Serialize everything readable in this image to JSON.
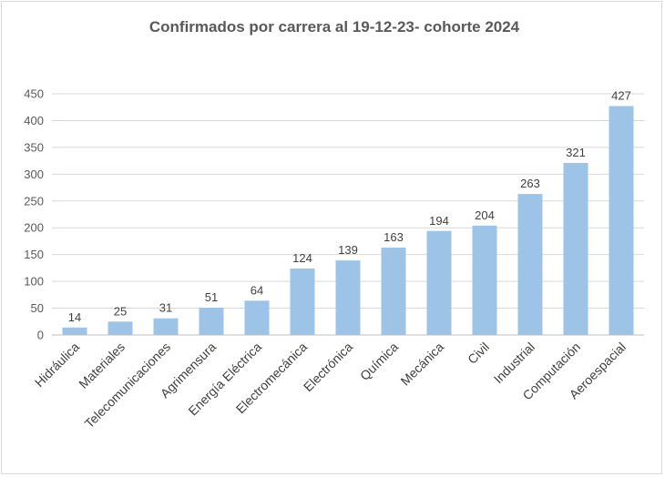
{
  "chart_data": {
    "type": "bar",
    "title": "Confirmados por carrera al 19-12-23- cohorte 2024",
    "xlabel": "",
    "ylabel": "",
    "ylim": [
      0,
      450
    ],
    "yticks": [
      0,
      50,
      100,
      150,
      200,
      250,
      300,
      350,
      400,
      450
    ],
    "grid": true,
    "legend": "none",
    "bar_color": "#9dc3e6",
    "categories": [
      "Hidráulica",
      "Materiales",
      "Telecomunicaciones",
      "Agrimensura",
      "Energía Eléctrica",
      "Electromecánica",
      "Electrónica",
      "Química",
      "Mecánica",
      "Civil",
      "Industrial",
      "Computación",
      "Aeroespacial"
    ],
    "values": [
      14,
      25,
      31,
      51,
      64,
      124,
      139,
      163,
      194,
      204,
      263,
      321,
      427
    ],
    "data_labels": [
      "14",
      "25",
      "31",
      "51",
      "64",
      "124",
      "139",
      "163",
      "194",
      "204",
      "263",
      "321",
      "427"
    ]
  }
}
